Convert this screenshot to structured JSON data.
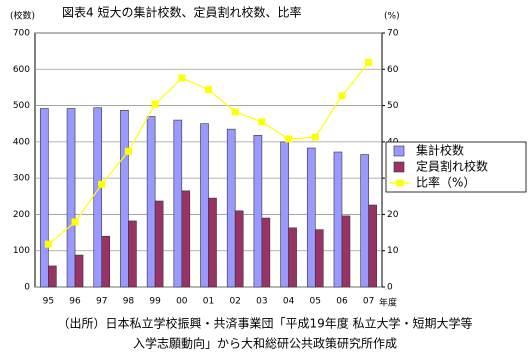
{
  "chart_data": {
    "type": "bar",
    "title": "図表4 短大の集計校数、定員割れ校数、比率",
    "y_label": "(校数)",
    "y2_label": "(%)",
    "x_label": "年度",
    "categories": [
      "95",
      "96",
      "97",
      "98",
      "99",
      "00",
      "01",
      "02",
      "03",
      "04",
      "05",
      "06",
      "07"
    ],
    "series": [
      {
        "name": "集計校数",
        "color": "#9999ff",
        "type": "bar",
        "values": [
          492,
          492,
          494,
          487,
          470,
          460,
          450,
          435,
          418,
          400,
          383,
          372,
          365
        ]
      },
      {
        "name": "定員割れ校数",
        "color": "#993366",
        "type": "bar",
        "values": [
          58,
          88,
          140,
          182,
          237,
          265,
          245,
          210,
          190,
          163,
          158,
          196,
          226
        ]
      },
      {
        "name": "比率（%）",
        "color": "#ffff00",
        "type": "line",
        "axis": "y2",
        "values": [
          11.8,
          17.9,
          28.3,
          37.4,
          50.4,
          57.6,
          54.4,
          48.3,
          45.5,
          40.8,
          41.3,
          52.7,
          61.9
        ]
      }
    ],
    "ylim": [
      0,
      700
    ],
    "yticks": [
      0,
      100,
      200,
      300,
      400,
      500,
      600,
      700
    ],
    "y2lim": [
      0,
      70
    ],
    "y2ticks": [
      0,
      10,
      20,
      30,
      40,
      50,
      60,
      70
    ],
    "grid": true,
    "legend": "right",
    "notes": [
      "（出所）日本私立学校振興・共済事業団「平成19年度 私立大学・短期大学等",
      "入学志願動向」から大和総研公共政策研究所作成"
    ]
  }
}
